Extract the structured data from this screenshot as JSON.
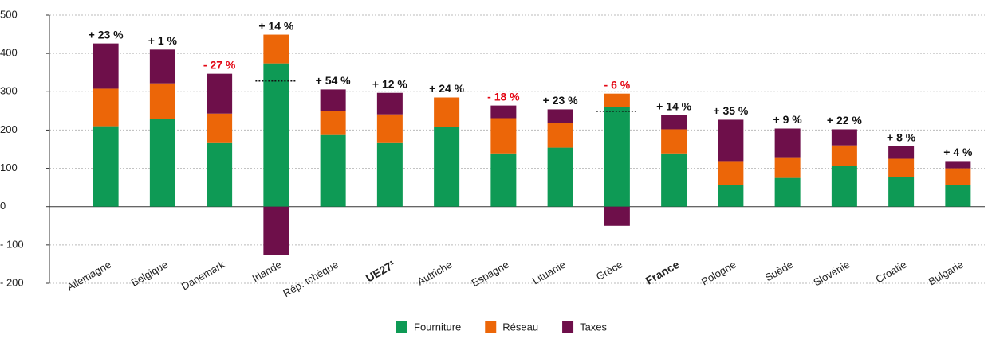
{
  "chart_data": {
    "type": "stacked_bar",
    "categories": [
      "Allemagne",
      "Belgique",
      "Danemark",
      "Irlande",
      "Rép. tchèque",
      "UE27¹",
      "Autriche",
      "Espagne",
      "Lituanie",
      "Grèce",
      "France",
      "Pologne",
      "Suède",
      "Slovénie",
      "Croatie",
      "Bulgarie"
    ],
    "bold_category_indices": [
      5,
      10
    ],
    "series": [
      {
        "name": "Fourniture",
        "color": "#0e9a55",
        "values": [
          210,
          229,
          166,
          374,
          187,
          166,
          208,
          139,
          154,
          260,
          139,
          56,
          75,
          106,
          77,
          56
        ]
      },
      {
        "name": "Réseau",
        "color": "#ec6608",
        "values": [
          98,
          93,
          77,
          75,
          62,
          75,
          77,
          92,
          64,
          35,
          63,
          63,
          54,
          54,
          48,
          44
        ]
      },
      {
        "name": "Taxes",
        "color": "#6e0f4a",
        "values": [
          118,
          88,
          104,
          -127,
          57,
          56,
          0,
          33,
          36,
          -50,
          37,
          108,
          75,
          42,
          33,
          19
        ]
      }
    ],
    "change_labels": [
      "+ 23 %",
      "+ 1 %",
      "- 27 %",
      "+ 14 %",
      "+ 54 %",
      "+ 12 %",
      "+ 24 %",
      "- 18 %",
      "+ 23 %",
      "- 6 %",
      "+ 14 %",
      "+ 35 %",
      "+ 9 %",
      "+ 22 %",
      "+ 8 %",
      "+ 4 %"
    ],
    "change_colors": [
      "#111",
      "#111",
      "#e30613",
      "#111",
      "#111",
      "#111",
      "#111",
      "#e30613",
      "#111",
      "#e30613",
      "#111",
      "#111",
      "#111",
      "#111",
      "#111",
      "#111"
    ],
    "reference_values": [
      null,
      null,
      null,
      328,
      null,
      null,
      null,
      null,
      null,
      249,
      null,
      null,
      null,
      null,
      null,
      null
    ],
    "ylim": [
      -200,
      500
    ],
    "yticks": [
      {
        "value": -200,
        "label": "- 200"
      },
      {
        "value": -100,
        "label": "- 100"
      },
      0,
      100,
      200,
      300,
      400,
      500
    ],
    "grid": true
  }
}
